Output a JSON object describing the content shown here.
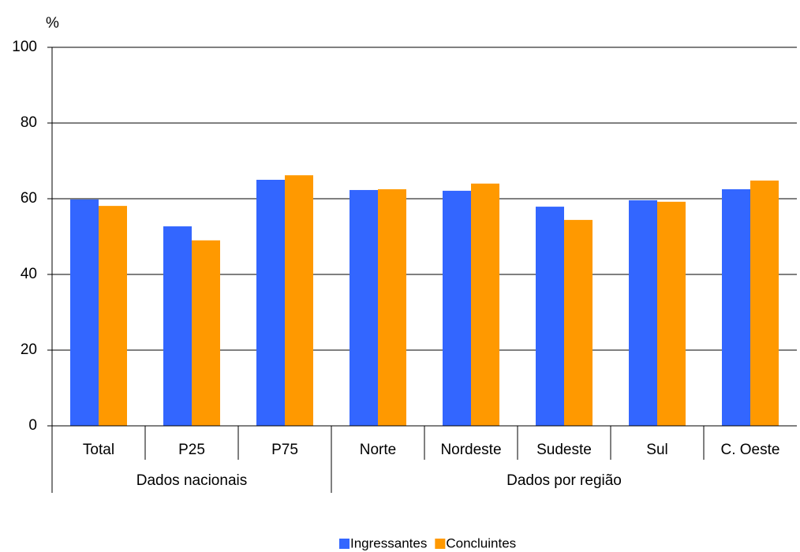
{
  "chart_data": {
    "type": "bar",
    "y_unit": "%",
    "categories": [
      "Total",
      "P25",
      "P75",
      "Norte",
      "Nordeste",
      "Sudeste",
      "Sul",
      "C. Oeste"
    ],
    "groups": [
      {
        "label": "Dados nacionais",
        "count": 3
      },
      {
        "label": "Dados por região",
        "count": 5
      }
    ],
    "series": [
      {
        "name": "Ingressantes",
        "color": "#3366ff",
        "values": [
          59.8,
          52.7,
          65.0,
          62.3,
          62.1,
          57.9,
          59.6,
          62.5
        ]
      },
      {
        "name": "Concluintes",
        "color": "#ff9900",
        "values": [
          58.1,
          49.0,
          66.2,
          62.5,
          64.0,
          54.4,
          59.2,
          64.8
        ]
      }
    ],
    "ylim": [
      0,
      100
    ],
    "yticks": [
      0,
      20,
      40,
      60,
      80,
      100
    ],
    "grid": true,
    "legend": "bottom"
  }
}
